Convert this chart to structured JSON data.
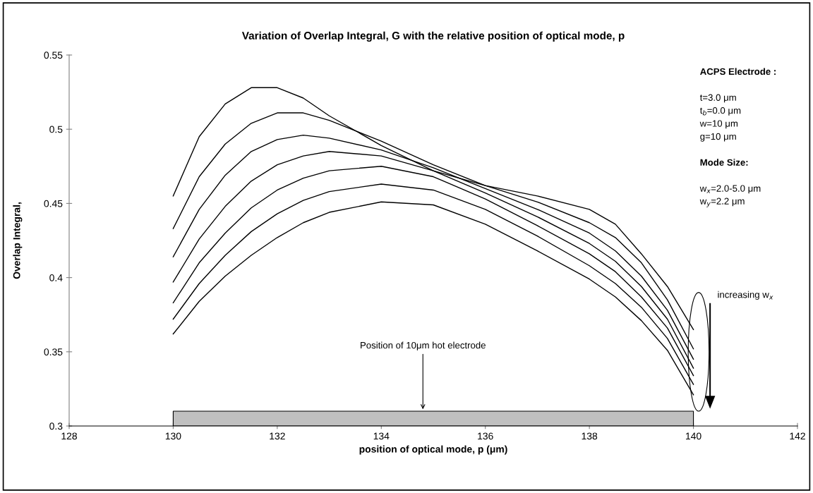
{
  "chart_data": {
    "type": "line",
    "title": "Variation of Overlap Integral, G with the relative position of optical mode, p",
    "xlabel": "position of optical mode, p (μm)",
    "ylabel": "Overlap Integral,",
    "x": [
      130,
      130.5,
      131,
      131.5,
      132,
      132.5,
      133,
      134,
      135,
      136,
      137,
      138,
      138.5,
      139,
      139.5,
      140
    ],
    "series": [
      {
        "color": "#000000",
        "values": [
          0.455,
          0.495,
          0.517,
          0.528,
          0.528,
          0.521,
          0.509,
          0.489,
          0.472,
          0.462,
          0.455,
          0.446,
          0.436,
          0.416,
          0.394,
          0.365
        ]
      },
      {
        "color": "#000000",
        "values": [
          0.433,
          0.468,
          0.49,
          0.504,
          0.511,
          0.511,
          0.506,
          0.492,
          0.476,
          0.462,
          0.451,
          0.437,
          0.427,
          0.41,
          0.385,
          0.352
        ]
      },
      {
        "color": "#000000",
        "values": [
          0.414,
          0.446,
          0.469,
          0.485,
          0.493,
          0.496,
          0.494,
          0.486,
          0.474,
          0.46,
          0.446,
          0.43,
          0.418,
          0.401,
          0.378,
          0.345
        ]
      },
      {
        "color": "#000000",
        "values": [
          0.397,
          0.426,
          0.448,
          0.465,
          0.476,
          0.482,
          0.485,
          0.482,
          0.472,
          0.457,
          0.441,
          0.423,
          0.411,
          0.394,
          0.372,
          0.339
        ]
      },
      {
        "color": "#000000",
        "values": [
          0.383,
          0.41,
          0.43,
          0.447,
          0.459,
          0.467,
          0.472,
          0.475,
          0.468,
          0.453,
          0.435,
          0.416,
          0.404,
          0.387,
          0.366,
          0.334
        ]
      },
      {
        "color": "#000000",
        "values": [
          0.372,
          0.396,
          0.415,
          0.431,
          0.443,
          0.452,
          0.458,
          0.463,
          0.459,
          0.446,
          0.428,
          0.408,
          0.396,
          0.38,
          0.359,
          0.328
        ]
      },
      {
        "color": "#000000",
        "values": [
          0.362,
          0.384,
          0.401,
          0.415,
          0.427,
          0.437,
          0.444,
          0.451,
          0.449,
          0.436,
          0.418,
          0.399,
          0.387,
          0.371,
          0.351,
          0.321
        ]
      },
      {
        "type": "area",
        "color": "#c0c0c0",
        "x": [
          130,
          140
        ],
        "values": [
          0.31,
          0.31
        ]
      }
    ],
    "xlim": [
      128,
      142
    ],
    "xticks": [
      128,
      130,
      132,
      134,
      136,
      138,
      140,
      142
    ],
    "ylim": [
      0.3,
      0.55
    ],
    "yticks": [
      0.3,
      0.35,
      0.4,
      0.45,
      0.5,
      0.55
    ],
    "annotations": [
      "Position of 10μm hot electrode",
      "ACPS Electrode :",
      "t=3.0 μm",
      "t$_{b}$=0.0 μm",
      "w=10 μm",
      "g=10 μm",
      "Mode Size:",
      "w$_{x}$=2.0-5.0 μm",
      "w$_{y}$=2.2 μm",
      "increasing w$_{x}$"
    ],
    "grid": false,
    "marker": "none",
    "line_style": "solid"
  }
}
